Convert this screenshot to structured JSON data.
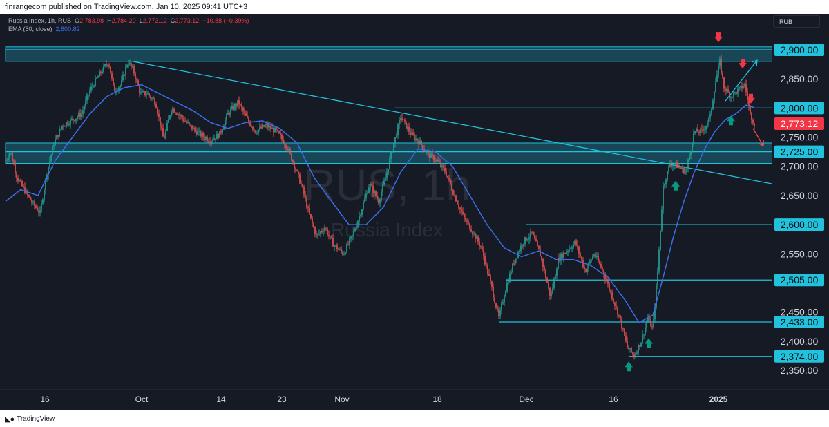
{
  "header": {
    "published_by": "finrangecom published on TradingView.com, Jan 10, 2025 09:41 UTC+3"
  },
  "legend": {
    "symbol": "Russia Index, 1h, RUS",
    "o_label": "O",
    "o_value": "2,783.98",
    "h_label": "H",
    "h_value": "2,784.20",
    "l_label": "L",
    "l_value": "2,773.12",
    "c_label": "C",
    "c_value": "2,773.12",
    "change": "−10.88 (−0.39%)",
    "ema_label": "EMA (50, close)",
    "ema_value": "2,800.82"
  },
  "currency_button": "RUB",
  "watermark": {
    "symbol": "RUS, 1h",
    "name": "Russia Index"
  },
  "footer": {
    "brand": "TradingView"
  },
  "colors": {
    "background": "#161a25",
    "up": "#26a69a",
    "down": "#ef5350",
    "level": "#22c1dc",
    "ema": "#3a6fe8",
    "arrow_up": "#089981",
    "arrow_down": "#f23645",
    "last_price": "#f23645"
  },
  "chart_data": {
    "type": "line",
    "title": "Russia Index, 1h, RUS",
    "xlabel": "",
    "ylabel": "",
    "x_ticks": [
      "16",
      "Oct",
      "14",
      "23",
      "Nov",
      "18",
      "Dec",
      "16",
      "2025"
    ],
    "y_ticks": [
      "2,900.00",
      "2,850.00",
      "2,800.00",
      "2,750.00",
      "2,725.00",
      "2,700.00",
      "2,650.00",
      "2,600.00",
      "2,550.00",
      "2,505.00",
      "2,450.00",
      "2,433.00",
      "2,400.00",
      "2,374.00",
      "2,350.00"
    ],
    "ylim": [
      2328,
      2938
    ],
    "xlim": [
      0,
      1110
    ],
    "grid": false,
    "series": [
      {
        "name": "Russia Index",
        "x": [
          8,
          15,
          25,
          35,
          45,
          58,
          68,
          78,
          90,
          105,
          118,
          130,
          145,
          157,
          165,
          175,
          185,
          193,
          203,
          213,
          225,
          237,
          248,
          258,
          270,
          283,
          295,
          305,
          318,
          330,
          345,
          358,
          370,
          385,
          400,
          415,
          425,
          437,
          447,
          458,
          470,
          483,
          497,
          510,
          523,
          535,
          548,
          558,
          568,
          580,
          595,
          608,
          620,
          632,
          645,
          658,
          670,
          683,
          697,
          710,
          722,
          733,
          745,
          757,
          770,
          783,
          797,
          808,
          820,
          833,
          847,
          860,
          873,
          885,
          897,
          908,
          918,
          928,
          938,
          945,
          952,
          960,
          970,
          982,
          993,
          1005,
          1017,
          1028,
          1035,
          1042,
          1048,
          1058,
          1068,
          1078,
          1086,
          1092
        ],
        "values": [
          2710,
          2725,
          2680,
          2660,
          2640,
          2620,
          2690,
          2740,
          2770,
          2780,
          2790,
          2830,
          2860,
          2880,
          2830,
          2840,
          2880,
          2865,
          2825,
          2825,
          2810,
          2745,
          2800,
          2790,
          2775,
          2760,
          2750,
          2745,
          2755,
          2790,
          2810,
          2780,
          2760,
          2770,
          2760,
          2735,
          2705,
          2665,
          2620,
          2580,
          2595,
          2565,
          2550,
          2580,
          2625,
          2670,
          2640,
          2680,
          2730,
          2785,
          2755,
          2740,
          2720,
          2710,
          2690,
          2650,
          2615,
          2590,
          2560,
          2500,
          2440,
          2495,
          2540,
          2570,
          2585,
          2545,
          2475,
          2540,
          2555,
          2570,
          2520,
          2550,
          2520,
          2480,
          2440,
          2390,
          2375,
          2400,
          2440,
          2420,
          2520,
          2665,
          2705,
          2700,
          2690,
          2760,
          2760,
          2785,
          2840,
          2880,
          2835,
          2820,
          2830,
          2840,
          2790,
          2773.12
        ]
      },
      {
        "name": "EMA (50, close)",
        "x": [
          8,
          30,
          55,
          80,
          105,
          130,
          155,
          180,
          205,
          230,
          255,
          280,
          305,
          330,
          355,
          380,
          405,
          430,
          455,
          480,
          505,
          530,
          555,
          580,
          605,
          630,
          655,
          680,
          705,
          730,
          755,
          780,
          805,
          830,
          855,
          880,
          905,
          925,
          945,
          960,
          975,
          990,
          1005,
          1020,
          1035,
          1050,
          1065,
          1080,
          1092
        ],
        "values": [
          2640,
          2660,
          2650,
          2710,
          2750,
          2790,
          2820,
          2835,
          2840,
          2825,
          2810,
          2795,
          2775,
          2765,
          2775,
          2778,
          2765,
          2740,
          2680,
          2640,
          2600,
          2600,
          2630,
          2690,
          2730,
          2725,
          2700,
          2650,
          2600,
          2560,
          2545,
          2555,
          2540,
          2540,
          2530,
          2510,
          2470,
          2432,
          2445,
          2510,
          2580,
          2640,
          2690,
          2730,
          2760,
          2780,
          2790,
          2805,
          2800.82
        ]
      }
    ],
    "levels": [
      {
        "label": "2,900.00",
        "value": 2900,
        "from": 8,
        "zone": [
          2880,
          2905
        ]
      },
      {
        "label": "2,800.00",
        "value": 2800,
        "from": 572
      },
      {
        "label": "2,725.00",
        "value": 2725,
        "from": 8,
        "zone": [
          2705,
          2740
        ]
      },
      {
        "label": "2,600.00",
        "value": 2600,
        "from": 762
      },
      {
        "label": "2,505.00",
        "value": 2505,
        "from": 732
      },
      {
        "label": "2,433.00",
        "value": 2433,
        "from": 723
      },
      {
        "label": "2,374.00",
        "value": 2374,
        "from": 910
      }
    ],
    "last_price": {
      "label": "2,773.12",
      "value": 2773.12
    },
    "trendline": {
      "x1": 192,
      "y1": 2880,
      "x2": 1117,
      "y2": 2670
    },
    "projection_up": {
      "x1": 1050,
      "y1": 2812,
      "x2": 1096,
      "y2": 2882
    },
    "projection_down": {
      "x1": 1090,
      "y1": 2765,
      "x2": 1105,
      "y2": 2735
    },
    "arrows": [
      {
        "dir": "down",
        "x": 1040,
        "value": 2920
      },
      {
        "dir": "down",
        "x": 1075,
        "value": 2875
      },
      {
        "dir": "down",
        "x": 1087,
        "value": 2815
      },
      {
        "dir": "up",
        "x": 1058,
        "value": 2780
      },
      {
        "dir": "up",
        "x": 978,
        "value": 2668
      },
      {
        "dir": "up",
        "x": 939,
        "value": 2398
      },
      {
        "dir": "up",
        "x": 910,
        "value": 2358
      }
    ]
  }
}
